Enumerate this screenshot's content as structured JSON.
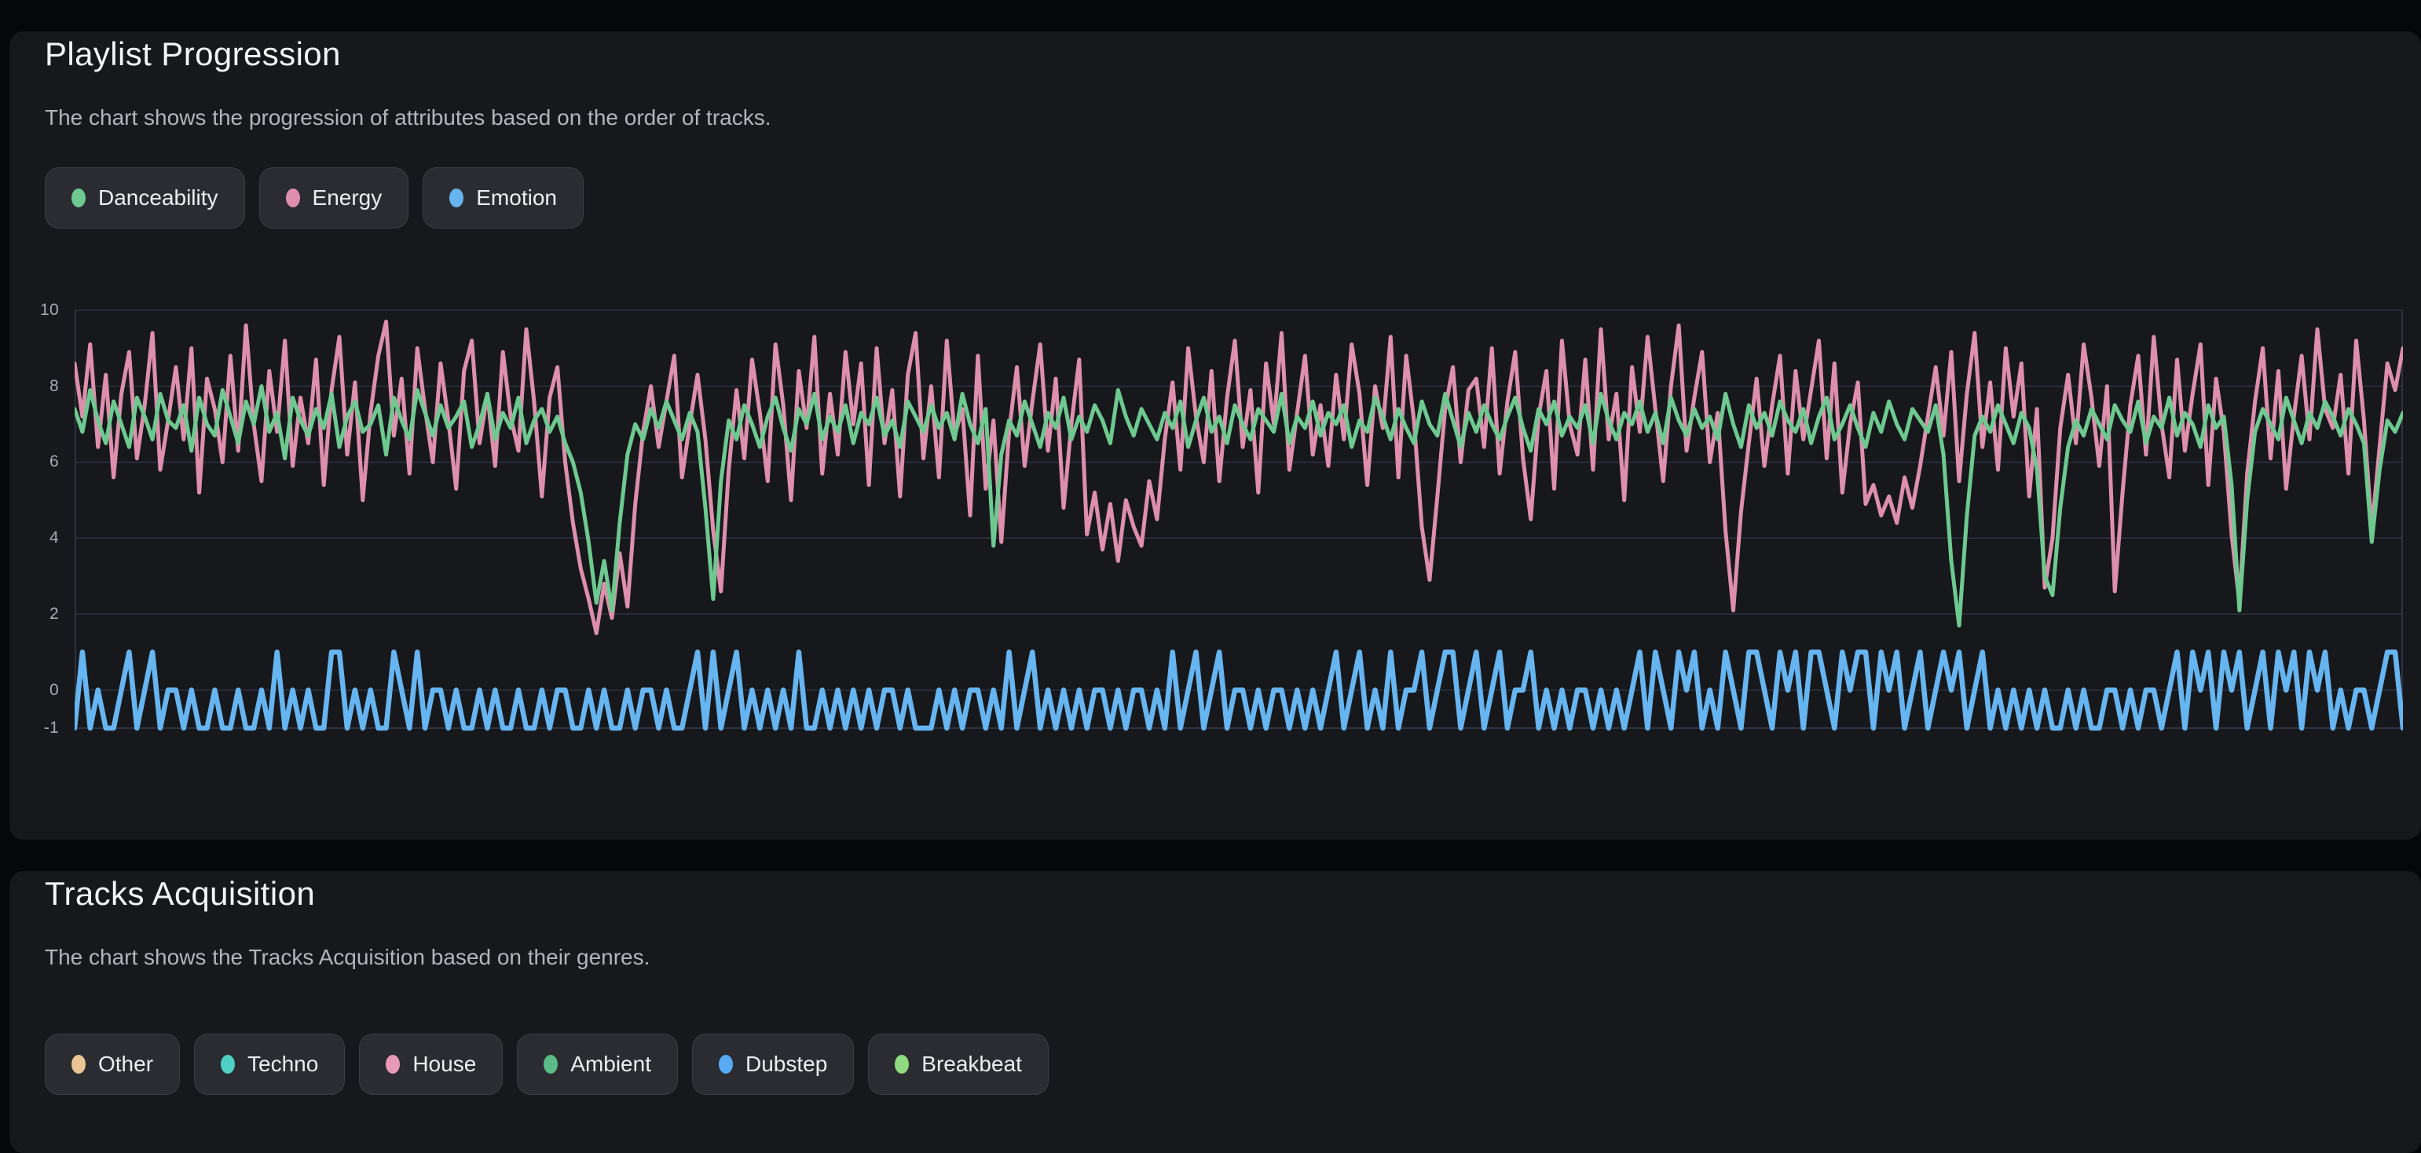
{
  "page": {
    "background": "#060709",
    "card_background": "#17181c",
    "title_color": "#f3f4f6",
    "description_color": "#b2b6bc",
    "gridline_color": "#2d3340",
    "axis_label_color": "#a5abb6"
  },
  "sections": [
    {
      "title": "Playlist Progression",
      "description": "The chart shows the progression of attributes based on the order of tracks.",
      "legend": [
        {
          "label": "Danceability",
          "color": "#6ec990"
        },
        {
          "label": "Energy",
          "color": "#de8fac"
        },
        {
          "label": "Emotion",
          "color": "#66b5f0"
        }
      ]
    },
    {
      "title": "Tracks Acquisition",
      "description": "The chart shows the Tracks Acquisition based on their genres.",
      "legend": [
        {
          "label": "Other",
          "color": "#eac493"
        },
        {
          "label": "Techno",
          "color": "#4fd0c4"
        },
        {
          "label": "House",
          "color": "#e79ab8"
        },
        {
          "label": "Ambient",
          "color": "#5cbc87"
        },
        {
          "label": "Dubstep",
          "color": "#57aaf3"
        },
        {
          "label": "Breakbeat",
          "color": "#8fd97e"
        }
      ]
    }
  ],
  "chart_data": {
    "type": "line",
    "title": "Playlist Progression",
    "xlabel": "",
    "ylabel": "",
    "x_meaning": "track order index (no x tick labels shown)",
    "n_points": 300,
    "ylim": [
      -1,
      10
    ],
    "yticks": [
      10,
      8,
      6,
      4,
      2,
      0,
      -1
    ],
    "grid": true,
    "legend_position": "top",
    "draw_order": [
      "Energy",
      "Danceability",
      "Emotion"
    ],
    "series": [
      {
        "name": "Danceability",
        "color": "#6ec990",
        "stroke_width": 5,
        "values": [
          7.4,
          6.8,
          7.9,
          7.1,
          6.5,
          7.6,
          7.0,
          6.4,
          7.7,
          7.2,
          6.6,
          7.8,
          7.1,
          6.9,
          7.5,
          6.3,
          7.7,
          7.0,
          6.7,
          7.9,
          7.2,
          6.5,
          7.6,
          7.0,
          8.0,
          6.8,
          7.3,
          6.1,
          7.7,
          7.1,
          6.7,
          7.4,
          6.9,
          7.8,
          6.4,
          7.2,
          7.6,
          6.8,
          7.0,
          7.5,
          6.2,
          7.7,
          7.1,
          6.6,
          7.9,
          7.3,
          6.7,
          7.5,
          6.9,
          7.2,
          7.6,
          6.4,
          7.0,
          7.8,
          6.6,
          7.3,
          6.9,
          7.7,
          6.5,
          7.1,
          7.4,
          6.8,
          7.2,
          6.5,
          6.0,
          5.2,
          3.9,
          2.3,
          3.4,
          2.1,
          4.4,
          6.2,
          7.0,
          6.6,
          7.4,
          6.9,
          7.6,
          7.1,
          6.6,
          7.3,
          6.8,
          4.8,
          2.4,
          5.5,
          7.1,
          6.6,
          7.5,
          7.0,
          6.4,
          7.2,
          7.7,
          6.9,
          6.3,
          7.4,
          7.0,
          7.8,
          6.6,
          7.2,
          6.8,
          7.5,
          6.5,
          7.3,
          7.0,
          7.7,
          6.7,
          7.1,
          6.4,
          7.6,
          7.2,
          6.8,
          7.5,
          6.9,
          7.3,
          6.6,
          7.8,
          7.0,
          6.5,
          7.4,
          3.8,
          6.2,
          7.1,
          6.7,
          7.6,
          7.0,
          6.4,
          7.3,
          6.9,
          7.7,
          6.6,
          7.2,
          6.8,
          7.5,
          7.1,
          6.5,
          7.9,
          7.2,
          6.7,
          7.4,
          7.0,
          6.6,
          7.3,
          6.9,
          7.6,
          6.4,
          7.1,
          7.7,
          6.8,
          7.2,
          6.5,
          7.5,
          7.0,
          6.6,
          7.4,
          7.1,
          6.8,
          7.8,
          6.5,
          7.2,
          6.9,
          7.6,
          6.7,
          7.3,
          7.0,
          7.5,
          6.4,
          7.1,
          6.8,
          7.7,
          7.2,
          6.6,
          7.4,
          6.9,
          6.5,
          7.6,
          7.0,
          6.7,
          7.8,
          7.1,
          6.4,
          7.3,
          6.8,
          7.5,
          7.0,
          6.6,
          7.2,
          7.7,
          6.9,
          6.3,
          7.4,
          7.0,
          7.6,
          6.7,
          7.2,
          6.9,
          7.5,
          6.5,
          7.8,
          7.1,
          6.6,
          7.3,
          7.0,
          7.6,
          6.8,
          7.3,
          6.5,
          7.7,
          7.1,
          6.7,
          7.4,
          6.9,
          7.2,
          6.6,
          7.8,
          7.0,
          6.4,
          7.5,
          6.9,
          7.3,
          6.7,
          7.6,
          7.1,
          6.8,
          7.4,
          6.5,
          7.2,
          7.7,
          6.6,
          7.0,
          7.5,
          6.9,
          6.4,
          7.3,
          6.8,
          7.6,
          7.0,
          6.6,
          7.4,
          7.1,
          6.8,
          7.5,
          6.2,
          3.4,
          1.7,
          4.6,
          6.7,
          7.2,
          6.8,
          7.5,
          7.0,
          6.5,
          7.3,
          6.9,
          5.8,
          3.0,
          2.5,
          4.8,
          6.4,
          7.1,
          6.7,
          7.4,
          7.0,
          6.6,
          7.5,
          7.1,
          6.8,
          7.6,
          6.5,
          7.2,
          6.9,
          7.7,
          6.7,
          7.3,
          7.0,
          6.4,
          7.5,
          6.9,
          7.2,
          5.4,
          2.1,
          5.0,
          6.8,
          7.4,
          7.0,
          6.6,
          7.7,
          7.1,
          6.5,
          7.3,
          6.9,
          7.6,
          7.2,
          6.7,
          7.4,
          7.0,
          6.5,
          3.9,
          5.8,
          7.1,
          6.8,
          7.3
        ]
      },
      {
        "name": "Energy",
        "color": "#de8fac",
        "stroke_width": 5,
        "values": [
          8.6,
          7.2,
          9.1,
          6.4,
          8.3,
          5.6,
          7.8,
          8.9,
          6.1,
          7.5,
          9.4,
          5.8,
          7.1,
          8.5,
          6.6,
          9.0,
          5.2,
          8.2,
          7.4,
          6.0,
          8.8,
          6.3,
          9.6,
          7.0,
          5.5,
          8.4,
          6.8,
          9.2,
          5.9,
          7.7,
          6.5,
          8.7,
          5.4,
          7.9,
          9.3,
          6.2,
          8.1,
          5.0,
          7.3,
          8.8,
          9.7,
          6.7,
          8.2,
          5.7,
          9.0,
          7.4,
          6.0,
          8.6,
          7.1,
          5.3,
          8.4,
          9.2,
          6.5,
          7.8,
          5.9,
          8.9,
          7.2,
          6.3,
          9.5,
          7.6,
          5.1,
          7.7,
          8.5,
          6.0,
          4.4,
          3.2,
          2.4,
          1.5,
          2.8,
          1.9,
          3.6,
          2.2,
          4.9,
          6.8,
          8.0,
          6.4,
          7.6,
          8.8,
          5.6,
          7.0,
          8.3,
          6.6,
          4.2,
          2.6,
          5.8,
          7.9,
          6.1,
          8.7,
          7.3,
          5.5,
          9.1,
          7.5,
          5.0,
          8.4,
          6.9,
          9.3,
          5.7,
          7.8,
          6.2,
          8.9,
          7.0,
          8.6,
          5.4,
          9.0,
          6.5,
          7.9,
          5.1,
          8.3,
          9.4,
          6.1,
          8.0,
          5.6,
          9.2,
          6.7,
          7.4,
          4.6,
          8.8,
          5.3,
          7.1,
          3.9,
          6.8,
          8.5,
          5.9,
          7.6,
          9.1,
          6.3,
          8.2,
          4.8,
          7.0,
          8.7,
          4.1,
          5.2,
          3.7,
          4.9,
          3.4,
          5.0,
          4.3,
          3.8,
          5.5,
          4.5,
          6.6,
          8.1,
          5.8,
          9.0,
          7.2,
          6.0,
          8.4,
          5.5,
          7.7,
          9.2,
          6.4,
          7.9,
          5.2,
          8.6,
          7.0,
          9.4,
          5.8,
          7.3,
          8.8,
          6.2,
          7.5,
          5.9,
          8.3,
          6.6,
          9.1,
          7.8,
          5.4,
          8.0,
          6.9,
          9.3,
          5.6,
          8.8,
          7.1,
          4.3,
          2.9,
          5.1,
          7.4,
          8.5,
          6.0,
          7.9,
          8.2,
          6.4,
          9.0,
          5.7,
          7.6,
          8.9,
          6.1,
          4.5,
          7.2,
          8.4,
          5.3,
          9.2,
          7.0,
          6.2,
          8.7,
          5.8,
          9.5,
          6.6,
          7.8,
          5.0,
          8.5,
          6.8,
          9.3,
          7.4,
          5.5,
          8.0,
          9.6,
          6.3,
          7.7,
          8.9,
          6.0,
          7.3,
          4.2,
          2.1,
          4.7,
          6.5,
          8.2,
          5.9,
          7.5,
          8.8,
          5.7,
          8.4,
          6.6,
          7.9,
          9.2,
          6.1,
          8.6,
          5.2,
          7.0,
          8.1,
          4.9,
          5.4,
          4.6,
          5.1,
          4.4,
          5.6,
          4.8,
          5.9,
          7.2,
          8.5,
          6.7,
          8.9,
          5.5,
          7.8,
          9.4,
          6.4,
          8.1,
          5.8,
          9.0,
          7.2,
          8.6,
          5.1,
          7.4,
          2.7,
          4.0,
          6.9,
          8.3,
          6.5,
          9.1,
          7.7,
          5.9,
          8.0,
          2.6,
          5.2,
          7.5,
          8.8,
          6.2,
          9.3,
          7.0,
          5.6,
          8.7,
          6.3,
          7.8,
          9.1,
          5.4,
          8.2,
          6.8,
          4.1,
          2.3,
          5.7,
          7.6,
          9.0,
          6.1,
          8.4,
          5.3,
          7.2,
          8.8,
          6.6,
          9.5,
          7.4,
          6.9,
          8.3,
          5.7,
          9.2,
          7.1,
          4.2,
          6.4,
          8.6,
          7.9,
          9.0
        ]
      },
      {
        "name": "Emotion",
        "color": "#66b5f0",
        "stroke_width": 6.5,
        "values": [
          -1,
          1,
          -1,
          0,
          -1,
          -1,
          0,
          1,
          -1,
          0,
          1,
          -1,
          0,
          0,
          -1,
          0,
          -1,
          -1,
          0,
          -1,
          -1,
          0,
          -1,
          -1,
          0,
          -1,
          1,
          -1,
          0,
          -1,
          0,
          -1,
          -1,
          1,
          1,
          -1,
          0,
          -1,
          0,
          -1,
          -1,
          1,
          0,
          -1,
          1,
          -1,
          0,
          0,
          -1,
          0,
          -1,
          -1,
          0,
          -1,
          0,
          -1,
          -1,
          0,
          -1,
          -1,
          0,
          -1,
          0,
          0,
          -1,
          -1,
          0,
          -1,
          0,
          -1,
          -1,
          0,
          -1,
          0,
          0,
          -1,
          0,
          -1,
          -1,
          0,
          1,
          -1,
          1,
          -1,
          0,
          1,
          -1,
          0,
          -1,
          0,
          -1,
          0,
          -1,
          1,
          -1,
          -1,
          0,
          -1,
          0,
          -1,
          0,
          -1,
          0,
          -1,
          0,
          0,
          -1,
          0,
          -1,
          -1,
          -1,
          0,
          -1,
          0,
          -1,
          0,
          0,
          -1,
          0,
          -1,
          1,
          -1,
          0,
          1,
          -1,
          0,
          -1,
          0,
          -1,
          0,
          -1,
          0,
          0,
          -1,
          0,
          -1,
          0,
          0,
          -1,
          0,
          -1,
          1,
          -1,
          0,
          1,
          -1,
          0,
          1,
          -1,
          0,
          0,
          -1,
          0,
          -1,
          0,
          0,
          -1,
          0,
          -1,
          0,
          -1,
          0,
          1,
          -1,
          0,
          1,
          -1,
          0,
          -1,
          1,
          -1,
          0,
          0,
          1,
          -1,
          0,
          1,
          1,
          -1,
          0,
          1,
          -1,
          0,
          1,
          -1,
          0,
          0,
          1,
          -1,
          0,
          -1,
          0,
          -1,
          0,
          0,
          -1,
          0,
          -1,
          0,
          -1,
          0,
          1,
          -1,
          1,
          0,
          -1,
          1,
          0,
          1,
          -1,
          0,
          -1,
          1,
          0,
          -1,
          1,
          1,
          0,
          -1,
          1,
          0,
          1,
          -1,
          1,
          1,
          0,
          -1,
          1,
          0,
          1,
          1,
          -1,
          1,
          0,
          1,
          -1,
          0,
          1,
          -1,
          0,
          1,
          0,
          1,
          -1,
          0,
          1,
          -1,
          0,
          -1,
          0,
          -1,
          0,
          -1,
          0,
          -1,
          -1,
          0,
          -1,
          0,
          -1,
          -1,
          0,
          0,
          -1,
          0,
          -1,
          0,
          0,
          -1,
          0,
          1,
          -1,
          1,
          0,
          1,
          -1,
          1,
          0,
          1,
          -1,
          0,
          1,
          -1,
          1,
          0,
          1,
          -1,
          1,
          0,
          1,
          -1,
          0,
          -1,
          0,
          0,
          -1,
          0,
          1,
          1,
          -1
        ]
      }
    ]
  }
}
